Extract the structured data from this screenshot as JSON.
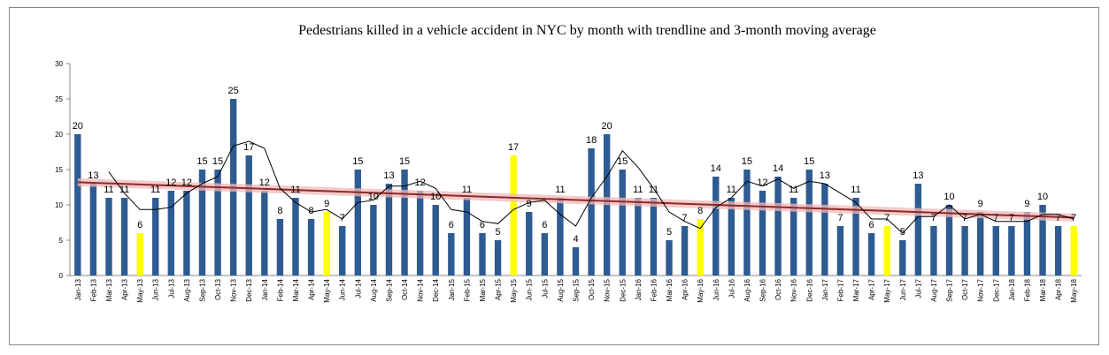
{
  "chart_data": {
    "type": "bar",
    "title": "Pedestrians killed in a vehicle accident  in NYC  by month with trendline and 3-month moving average",
    "xlabel": "",
    "ylabel": "",
    "ylim": [
      0,
      30
    ],
    "yticks": [
      0,
      5,
      10,
      15,
      20,
      25,
      30
    ],
    "grid": false,
    "legend": "none",
    "categories": [
      "Jan-13",
      "Feb-13",
      "Mar-13",
      "Apr-13",
      "May-13",
      "Jun-13",
      "Jul-13",
      "Aug-13",
      "Sep-13",
      "Oct-13",
      "Nov-13",
      "Dec-13",
      "Jan-14",
      "Feb-14",
      "Mar-14",
      "Apr-14",
      "May-14",
      "Jun-14",
      "Jul-14",
      "Aug-14",
      "Sep-14",
      "Oct-14",
      "Nov-14",
      "Dec-14",
      "Jan-15",
      "Feb-15",
      "Mar-15",
      "Apr-15",
      "May-15",
      "Jun-15",
      "Jul-15",
      "Aug-15",
      "Sep-15",
      "Oct-15",
      "Nov-15",
      "Dec-15",
      "Jan-16",
      "Feb-16",
      "Mar-16",
      "Apr-16",
      "May-16",
      "Jun-16",
      "Jul-16",
      "Aug-16",
      "Sep-16",
      "Oct-16",
      "Nov-16",
      "Dec-16",
      "Jan-17",
      "Feb-17",
      "Mar-17",
      "Apr-17",
      "May-17",
      "Jun-17",
      "Jul-17",
      "Aug-17",
      "Sep-17",
      "Oct-17",
      "Nov-17",
      "Dec-17",
      "Jan-18",
      "Feb-18",
      "Mar-18",
      "Apr-18",
      "May-18"
    ],
    "values": [
      20,
      13,
      11,
      11,
      6,
      11,
      12,
      12,
      15,
      15,
      25,
      17,
      12,
      8,
      11,
      8,
      9,
      7,
      15,
      10,
      13,
      15,
      12,
      10,
      6,
      11,
      6,
      5,
      17,
      9,
      6,
      11,
      4,
      18,
      20,
      15,
      11,
      11,
      5,
      7,
      8,
      14,
      11,
      15,
      12,
      14,
      11,
      15,
      13,
      7,
      11,
      6,
      7,
      5,
      13,
      7,
      10,
      7,
      9,
      7,
      7,
      9,
      10,
      7,
      7
    ],
    "data_labels": [
      "20",
      "13",
      "11",
      "11",
      "6",
      "11",
      "12",
      "12",
      "15",
      "15",
      "25",
      "17",
      "12",
      "8",
      "11",
      "8",
      "9",
      "7",
      "15",
      "10",
      "13",
      "15",
      "12",
      "10",
      "6",
      "11",
      "6",
      "5",
      "17",
      "9",
      "6",
      "11",
      "4",
      "18",
      "20",
      "15",
      "11",
      "11",
      "5",
      "7",
      "8",
      "14",
      "11",
      "15",
      "12",
      "14",
      "11",
      "15",
      "13",
      "7",
      "11",
      "6",
      "7",
      "5",
      "13",
      "7",
      "10",
      "7",
      "9",
      "7",
      "7",
      "9",
      "10",
      "7",
      "7"
    ],
    "may_highlight_color": "#ffff00",
    "bar_color": "#2e5b91",
    "moving_average_color": "#000000",
    "trendline_color": "#8b2a2a",
    "trendline_band_color": "#f2b8b8",
    "trendline": {
      "start": 13.2,
      "end": 8.2
    }
  }
}
